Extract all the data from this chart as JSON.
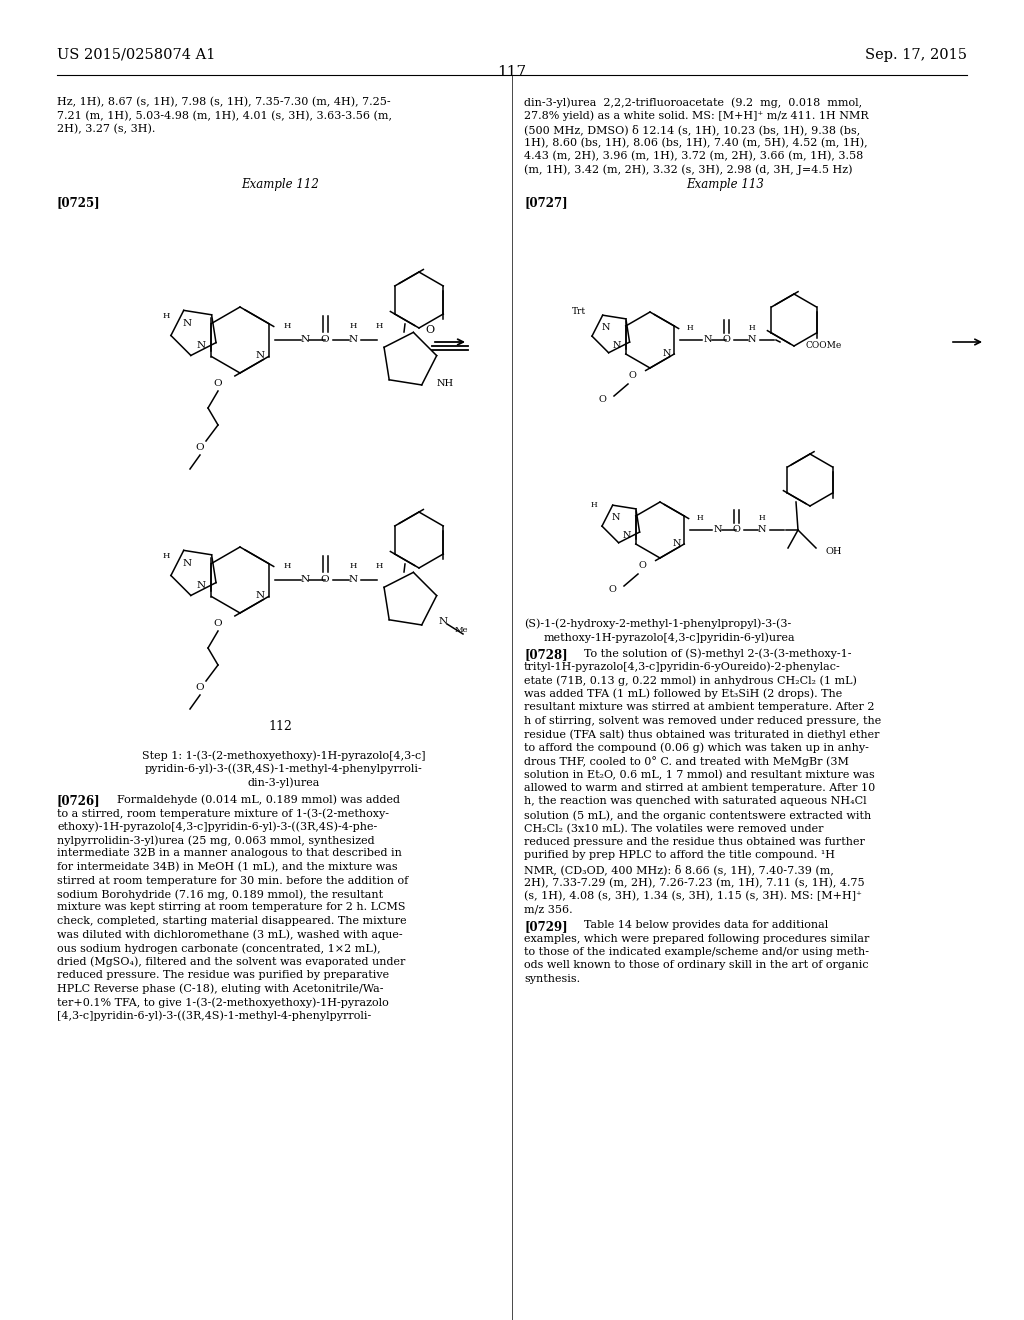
{
  "page_number": "117",
  "patent_left": "US 2015/0258074 A1",
  "patent_right": "Sep. 17, 2015",
  "bg": "#ffffff",
  "left_top_lines": [
    "Hz, 1H), 8.67 (s, 1H), 7.98 (s, 1H), 7.35-7.30 (m, 4H), 7.25-",
    "7.21 (m, 1H), 5.03-4.98 (m, 1H), 4.01 (s, 3H), 3.63-3.56 (m,",
    "2H), 3.27 (s, 3H)."
  ],
  "right_top_lines": [
    "din-3-yl)urea  2,2,2-trifluoroacetate  (9.2  mg,  0.018  mmol,",
    "27.8% yield) as a white solid. MS: [M+H]⁺ m/z 411. 1H NMR",
    "(500 MHz, DMSO) δ 12.14 (s, 1H), 10.23 (bs, 1H), 9.38 (bs,",
    "1H), 8.60 (bs, 1H), 8.06 (bs, 1H), 7.40 (m, 5H), 4.52 (m, 1H),",
    "4.43 (m, 2H), 3.96 (m, 1H), 3.72 (m, 2H), 3.66 (m, 1H), 3.58",
    "(m, 1H), 3.42 (m, 2H), 3.32 (s, 3H), 2.98 (d, 3H, J=4.5 Hz)"
  ],
  "step1_lines": [
    "Step 1: 1-(3-(2-methoxyethoxy)-1H-pyrazolo[4,3-c]",
    "pyridin-6-yl)-3-((3R,4S)-1-methyl-4-phenylpyrroli-",
    "din-3-yl)urea"
  ],
  "p726_lines": [
    "to a stirred, room temperature mixture of 1-(3-(2-methoxy-",
    "ethoxy)-1H-pyrazolo[4,3-c]pyridin-6-yl)-3-((3R,4S)-4-phe-",
    "nylpyrrolidin-3-yl)urea (25 mg, 0.063 mmol, synthesized",
    "intermediate 32B in a manner analogous to that described in",
    "for intermeidate 34B) in MeOH (1 mL), and the mixture was",
    "stirred at room temperature for 30 min. before the addition of",
    "sodium Borohydride (7.16 mg, 0.189 mmol), the resultant",
    "mixture was kept stirring at room temperature for 2 h. LCMS",
    "check, completed, starting material disappeared. The mixture",
    "was diluted with dichloromethane (3 mL), washed with aque-",
    "ous sodium hydrogen carbonate (concentrated, 1×2 mL),",
    "dried (MgSO₄), filtered and the solvent was evaporated under",
    "reduced pressure. The residue was purified by preparative",
    "HPLC Reverse phase (C-18), eluting with Acetonitrile/Wa-",
    "ter+0.1% TFA, to give 1-(3-(2-methoxyethoxy)-1H-pyrazolo",
    "[4,3-c]pyridin-6-yl)-3-((3R,4S)-1-methyl-4-phenylpyrroli-"
  ],
  "p728_lines": [
    "trityl-1H-pyrazolo[4,3-c]pyridin-6-yOureido)-2-phenylac-",
    "etate (71B, 0.13 g, 0.22 mmol) in anhydrous CH₂Cl₂ (1 mL)",
    "was added TFA (1 mL) followed by Et₃SiH (2 drops). The",
    "resultant mixture was stirred at ambient temperature. After 2",
    "h of stirring, solvent was removed under reduced pressure, the",
    "residue (TFA salt) thus obtained was triturated in diethyl ether",
    "to afford the compound (0.06 g) which was taken up in anhy-",
    "drous THF, cooled to 0° C. and treated with MeMgBr (3M",
    "solution in Et₂O, 0.6 mL, 1 7 mmol) and resultant mixture was",
    "allowed to warm and stirred at ambient temperature. After 10",
    "h, the reaction was quenched with saturated aqueous NH₄Cl",
    "solution (5 mL), and the organic contentswere extracted with",
    "CH₂Cl₂ (3x10 mL). The volatiles were removed under",
    "reduced pressure and the residue thus obtained was further",
    "purified by prep HPLC to afford the title compound. ¹H",
    "NMR, (CD₃OD, 400 MHz): δ 8.66 (s, 1H), 7.40-7.39 (m,",
    "2H), 7.33-7.29 (m, 2H), 7.26-7.23 (m, 1H), 7.11 (s, 1H), 4.75",
    "(s, 1H), 4.08 (s, 3H), 1.34 (s, 3H), 1.15 (s, 3H). MS: [M+H]⁺",
    "m/z 356."
  ],
  "p729_lines": [
    "examples, which were prepared following procedures similar",
    "to those of the indicated example/scheme and/or using meth-",
    "ods well known to those of ordinary skill in the art of organic",
    "synthesis."
  ]
}
